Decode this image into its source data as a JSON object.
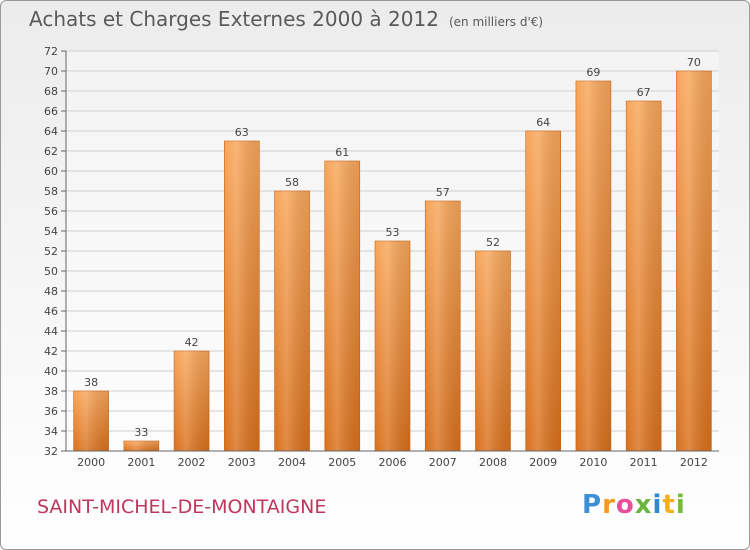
{
  "title": "Achats et Charges Externes 2000 à 2012",
  "unit": "(en milliers d'€)",
  "place": "SAINT-MICHEL-DE-MONTAIGNE",
  "logo": {
    "letters": [
      "P",
      "r",
      "o",
      "x",
      "i",
      "t",
      "i"
    ],
    "colors": [
      "#3a8fd6",
      "#f39a1e",
      "#e84f9a",
      "#6bb43f",
      "#2d8ad0",
      "#f2b11d",
      "#77b83e"
    ]
  },
  "chart_data": {
    "type": "bar",
    "categories": [
      "2000",
      "2001",
      "2002",
      "2003",
      "2004",
      "2005",
      "2006",
      "2007",
      "2008",
      "2009",
      "2010",
      "2011",
      "2012"
    ],
    "values": [
      38,
      33,
      42,
      63,
      58,
      61,
      53,
      57,
      52,
      64,
      69,
      67,
      70
    ],
    "ylim": [
      32,
      72
    ],
    "yticks": [
      32,
      34,
      36,
      38,
      40,
      42,
      44,
      46,
      48,
      50,
      52,
      54,
      56,
      58,
      60,
      62,
      64,
      66,
      68,
      70,
      72
    ],
    "grid": true,
    "bar_color": "#ef8a2e"
  }
}
